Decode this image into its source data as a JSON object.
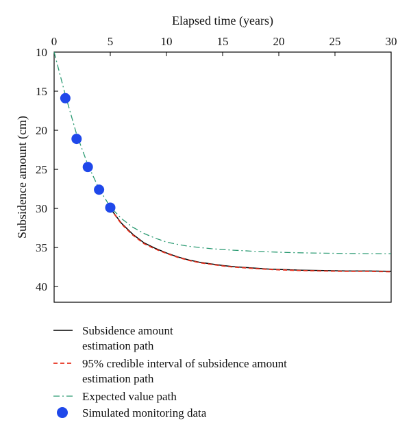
{
  "chart_data": {
    "type": "line",
    "x_axis": {
      "label": "Elapsed time (years)",
      "position": "top",
      "range": [
        0,
        30
      ],
      "ticks": [
        0,
        5,
        10,
        15,
        20,
        25,
        30
      ],
      "tick_labels": [
        "0",
        "5",
        "10",
        "15",
        "20",
        "25",
        "30"
      ]
    },
    "y_axis": {
      "label": "Subsidence amount (cm)",
      "range": [
        10,
        42
      ],
      "inverted": true,
      "ticks": [
        10,
        15,
        20,
        25,
        30,
        35,
        40
      ],
      "tick_labels": [
        "10",
        "15",
        "20",
        "25",
        "30",
        "35",
        "40"
      ]
    },
    "grid": false,
    "legend_position": "bottom",
    "series": [
      {
        "name": "Subsidence amount estimation path",
        "style": "solid",
        "color": "#000000",
        "x": [
          5,
          6,
          7,
          8,
          9,
          10,
          11,
          12,
          13,
          14,
          15,
          16,
          17,
          18,
          19,
          20,
          22,
          24,
          26,
          28,
          30
        ],
        "y": [
          30.0,
          31.9,
          33.3,
          34.4,
          35.1,
          35.7,
          36.2,
          36.6,
          36.9,
          37.1,
          37.3,
          37.45,
          37.55,
          37.65,
          37.75,
          37.8,
          37.9,
          37.95,
          38.0,
          38.0,
          38.05
        ]
      },
      {
        "name": "95% credible interval of  subsidence amount estimation path",
        "style": "dashed",
        "color": "#e8311f",
        "x": [
          5,
          6,
          7,
          8,
          9,
          10,
          11,
          12,
          13,
          14,
          15,
          16,
          17,
          18,
          19,
          20,
          22,
          24,
          26,
          28,
          30
        ],
        "y": [
          30.0,
          32.0,
          33.4,
          34.5,
          35.2,
          35.75,
          36.25,
          36.65,
          36.95,
          37.15,
          37.35,
          37.5,
          37.6,
          37.7,
          37.78,
          37.85,
          37.95,
          38.0,
          38.05,
          38.05,
          38.1
        ]
      },
      {
        "name": "Expected value path",
        "style": "dashdot",
        "color": "#2a9a72",
        "x": [
          0,
          1,
          2,
          3,
          4,
          5,
          6,
          7,
          8,
          9,
          10,
          11,
          12,
          13,
          14,
          15,
          16,
          17,
          18,
          19,
          20,
          22,
          24,
          26,
          28,
          30
        ],
        "y": [
          10.0,
          15.5,
          20.5,
          24.4,
          27.5,
          29.8,
          31.3,
          32.4,
          33.2,
          33.8,
          34.3,
          34.6,
          34.85,
          35.0,
          35.15,
          35.25,
          35.35,
          35.42,
          35.5,
          35.55,
          35.6,
          35.68,
          35.72,
          35.76,
          35.78,
          35.8
        ]
      },
      {
        "name": "Simulated monitoring data",
        "style": "markers",
        "color": "#1f48ea",
        "x": [
          1,
          2,
          3,
          4,
          5
        ],
        "y": [
          15.9,
          21.1,
          24.7,
          27.6,
          29.9
        ]
      }
    ],
    "legend": [
      {
        "lines": [
          "Subsidence amount",
          "estimation path"
        ]
      },
      {
        "lines": [
          "95% credible interval of  subsidence amount",
          "estimation path"
        ]
      },
      {
        "lines": [
          "Expected value path"
        ]
      },
      {
        "lines": [
          "Simulated monitoring data"
        ]
      }
    ]
  }
}
